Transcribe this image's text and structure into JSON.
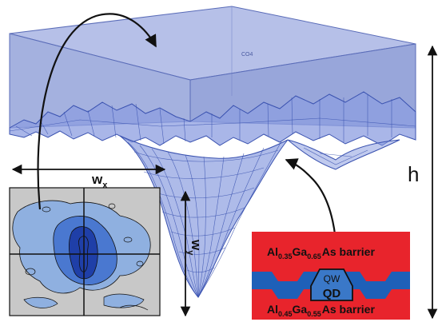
{
  "labels": {
    "box_tag": "CO4",
    "h": "h",
    "wx_main": "w",
    "wx_sub": "x",
    "wy_main": "w",
    "wy_sub": "y",
    "barrier_top_prefix": "Al",
    "barrier_top_al": "0.35",
    "barrier_top_ga_prefix": "Ga",
    "barrier_top_ga": "0.65",
    "barrier_top_suffix": "As barrier",
    "barrier_bottom_prefix": "Al",
    "barrier_bottom_al": "0.45",
    "barrier_bottom_ga_prefix": "Ga",
    "barrier_bottom_ga": "0.55",
    "barrier_bottom_suffix": "As barrier",
    "qw": "QW",
    "qd": "QD"
  },
  "colors": {
    "box_face": "#9aa8dc",
    "box_edge": "#5a6cb8",
    "surface_fill": "#8c9ee0",
    "surface_line": "#3a52b0",
    "contour_bg": "#c8c8c8",
    "contour_light": "#8fb0e0",
    "contour_mid": "#4a78d0",
    "contour_dark": "#1f3fa8",
    "barrier_red": "#e8242c",
    "qw_blue": "#1e60b8",
    "qd_blue": "#3a78c8",
    "arrow": "#111111"
  }
}
